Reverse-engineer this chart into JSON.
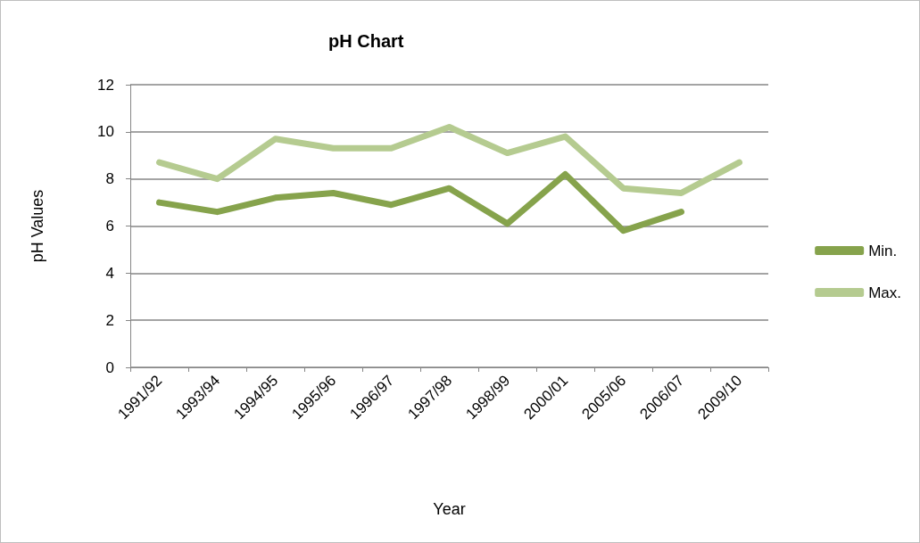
{
  "chart_data": {
    "type": "line",
    "title": "pH Chart",
    "xlabel": "Year",
    "ylabel": "pH Values",
    "categories": [
      "1991/92",
      "1993/94",
      "1994/95",
      "1995/96",
      "1996/97",
      "1997/98",
      "1998/99",
      "2000/01",
      "2005/06",
      "2006/07",
      "2009/10"
    ],
    "series": [
      {
        "name": "Min.",
        "color": "#86a34c",
        "values": [
          7.0,
          6.6,
          7.2,
          7.4,
          6.9,
          7.6,
          6.1,
          8.2,
          5.8,
          6.6,
          null
        ]
      },
      {
        "name": "Max.",
        "color": "#b5cb90",
        "values": [
          8.7,
          8.0,
          9.7,
          9.3,
          9.3,
          10.2,
          9.1,
          9.8,
          7.6,
          7.4,
          8.7
        ]
      }
    ],
    "ylim": [
      0,
      12
    ],
    "yticks": [
      0,
      2,
      4,
      6,
      8,
      10,
      12
    ],
    "grid": "y",
    "legend": "right",
    "marker": "none",
    "line_style": "solid"
  }
}
